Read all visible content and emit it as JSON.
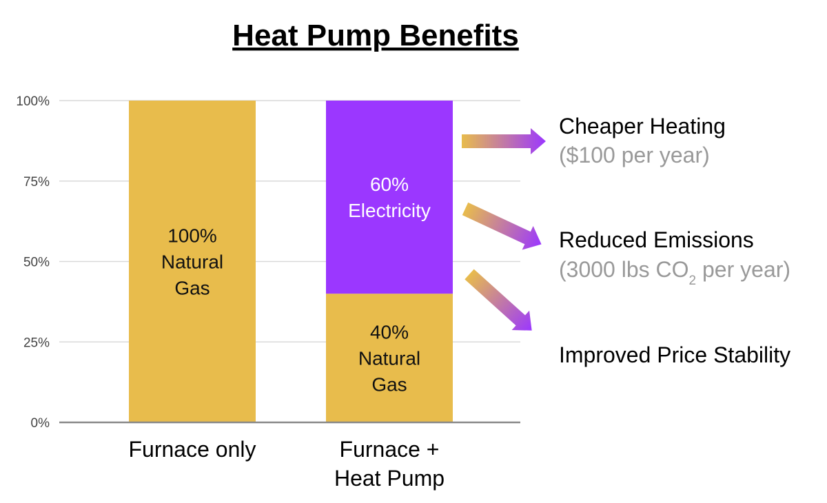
{
  "title": "Heat Pump Benefits",
  "colors": {
    "natural_gas": "#E8BC4C",
    "electricity": "#9B37FF",
    "grid": "#d9d9d9",
    "axis": "#888888",
    "subtext": "#999999"
  },
  "chart_data": {
    "type": "bar",
    "stacked": true,
    "title": "Heat Pump Benefits",
    "categories": [
      "Furnace only",
      "Furnace + Heat Pump"
    ],
    "category_lines": [
      [
        "Furnace only"
      ],
      [
        "Furnace +",
        "Heat Pump"
      ]
    ],
    "ylim": [
      0,
      100
    ],
    "ytick_values": [
      0,
      25,
      50,
      75,
      100
    ],
    "ytick_labels": [
      "0%",
      "25%",
      "50%",
      "75%",
      "100%"
    ],
    "grid": true,
    "series": [
      {
        "name": "Natural Gas",
        "color": "#E8BC4C",
        "values": [
          100,
          40
        ],
        "label_lines": [
          [
            "100%",
            "Natural",
            "Gas"
          ],
          [
            "40%",
            "Natural",
            "Gas"
          ]
        ]
      },
      {
        "name": "Electricity",
        "color": "#9B37FF",
        "values": [
          0,
          60
        ],
        "label_lines": [
          [],
          [
            "60%",
            "Electricity"
          ]
        ]
      }
    ]
  },
  "benefits": [
    {
      "title": "Cheaper Heating",
      "detail": "($100 per year)"
    },
    {
      "title": "Reduced Emissions",
      "detail_pre": "(3000 lbs CO",
      "detail_sub": "2",
      "detail_post": " per year)"
    },
    {
      "title": "Improved Price Stability"
    }
  ]
}
